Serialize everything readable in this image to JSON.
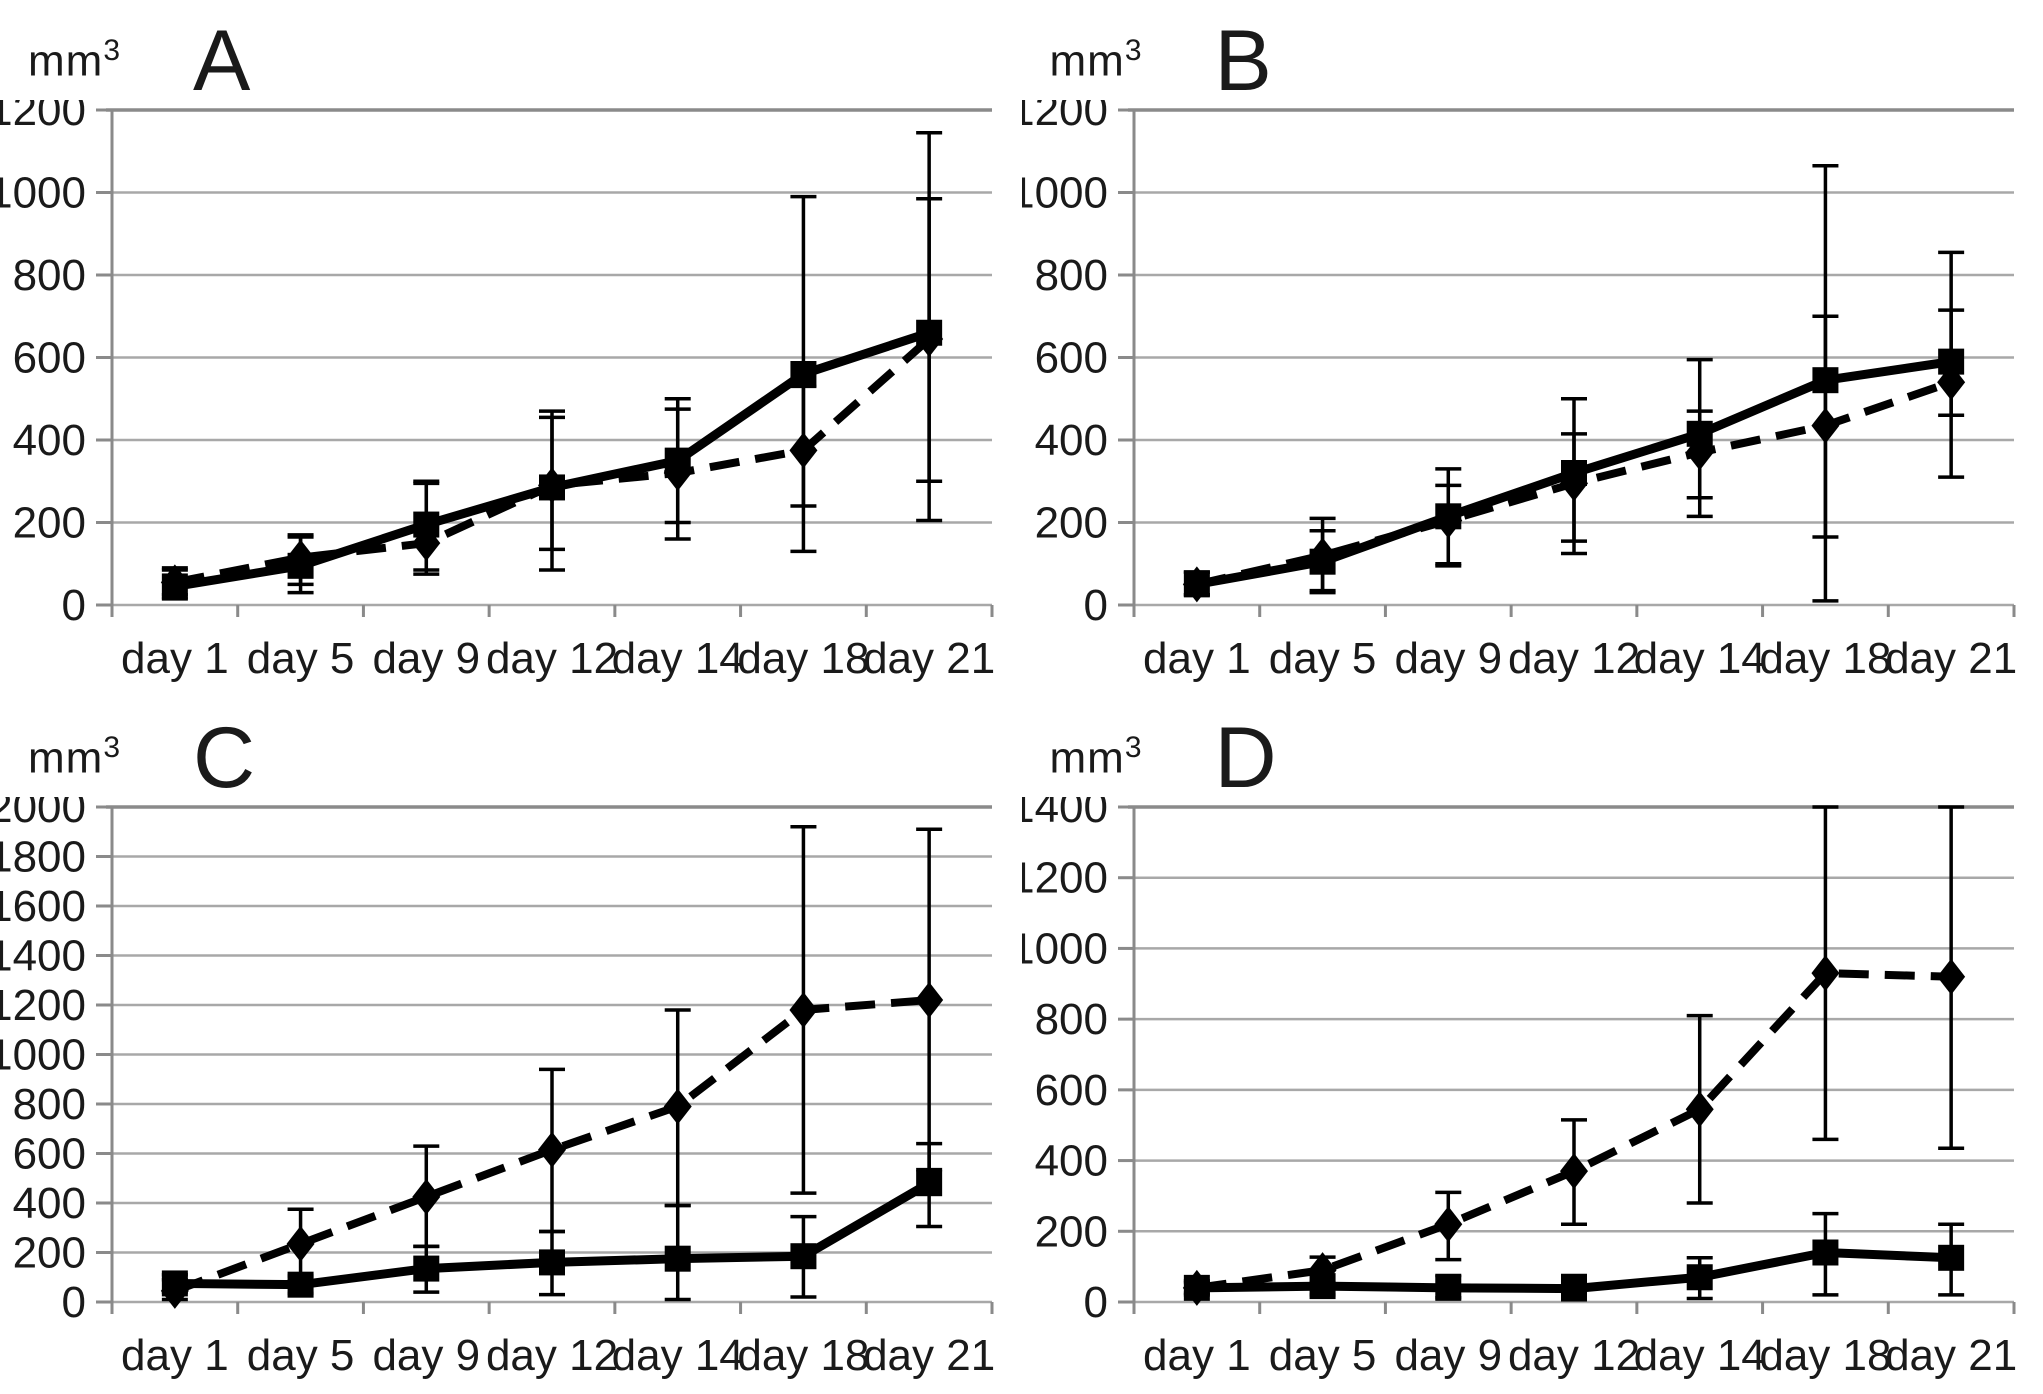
{
  "figure_title": "",
  "colors": {
    "series": "#000000",
    "gridline": "#a8a8a8",
    "axis": "#8a8a8a",
    "text": "#1a1a1a",
    "background": "#ffffff"
  },
  "chart_data": [
    {
      "panel": "A",
      "type": "line",
      "unit_base": "mm",
      "unit_exp": "3",
      "ylabel": "mm³",
      "xlabel": "",
      "grid": true,
      "legend": "none",
      "categories": [
        "day 1",
        "day 5",
        "day 9",
        "day 12",
        "day 14",
        "day 18",
        "day 21"
      ],
      "ylim": [
        0,
        1200
      ],
      "ytick_step": 200,
      "series": [
        {
          "name": "dashed-diamond-series",
          "marker": "diamond",
          "line_style": "dashed",
          "values": [
            55,
            115,
            150,
            290,
            320,
            375,
            645
          ],
          "err_low": [
            25,
            50,
            75,
            85,
            200,
            130,
            205
          ],
          "err_high": [
            90,
            165,
            300,
            470,
            475,
            530,
            985
          ]
        },
        {
          "name": "solid-square-series",
          "marker": "square",
          "line_style": "solid",
          "values": [
            45,
            95,
            195,
            285,
            350,
            560,
            660
          ],
          "err_low": [
            15,
            30,
            85,
            135,
            160,
            240,
            300
          ],
          "err_high": [
            85,
            170,
            295,
            455,
            500,
            990,
            1145
          ]
        }
      ]
    },
    {
      "panel": "B",
      "type": "line",
      "unit_base": "mm",
      "unit_exp": "3",
      "ylabel": "mm³",
      "xlabel": "",
      "grid": true,
      "legend": "none",
      "categories": [
        "day 1",
        "day 5",
        "day 9",
        "day 12",
        "day 14",
        "day 18",
        "day 21"
      ],
      "ylim": [
        0,
        1200
      ],
      "ytick_step": 200,
      "series": [
        {
          "name": "dashed-diamond-series",
          "marker": "diamond",
          "line_style": "dashed",
          "values": [
            50,
            120,
            205,
            295,
            370,
            435,
            540
          ],
          "err_low": [
            25,
            35,
            100,
            125,
            260,
            10,
            310
          ],
          "err_high": [
            80,
            180,
            290,
            415,
            470,
            700,
            715
          ]
        },
        {
          "name": "solid-square-series",
          "marker": "square",
          "line_style": "solid",
          "values": [
            50,
            105,
            215,
            320,
            415,
            545,
            590
          ],
          "err_low": [
            25,
            30,
            95,
            155,
            215,
            165,
            460
          ],
          "err_high": [
            80,
            210,
            330,
            500,
            595,
            1065,
            855
          ]
        }
      ]
    },
    {
      "panel": "C",
      "type": "line",
      "unit_base": "mm",
      "unit_exp": "3",
      "ylabel": "mm³",
      "xlabel": "",
      "grid": true,
      "legend": "none",
      "categories": [
        "day 1",
        "day 5",
        "day 9",
        "day 12",
        "day 14",
        "day 18",
        "day 21"
      ],
      "ylim": [
        0,
        2000
      ],
      "ytick_step": 200,
      "series": [
        {
          "name": "dashed-diamond-series",
          "marker": "diamond",
          "line_style": "dashed",
          "values": [
            45,
            235,
            425,
            615,
            790,
            1180,
            1220
          ],
          "err_low": [
            10,
            85,
            225,
            285,
            390,
            440,
            535
          ],
          "err_high": [
            90,
            375,
            630,
            940,
            1180,
            1920,
            1910
          ]
        },
        {
          "name": "solid-square-series",
          "marker": "square",
          "line_style": "solid",
          "values": [
            75,
            70,
            135,
            160,
            175,
            185,
            480
          ],
          "err_low": [
            40,
            35,
            40,
            30,
            10,
            20,
            305
          ],
          "err_high": [
            110,
            105,
            225,
            285,
            390,
            345,
            640
          ]
        }
      ]
    },
    {
      "panel": "D",
      "type": "line",
      "unit_base": "mm",
      "unit_exp": "3",
      "ylabel": "mm³",
      "xlabel": "",
      "grid": true,
      "legend": "none",
      "categories": [
        "day 1",
        "day 5",
        "day 9",
        "day 12",
        "day 14",
        "day 18",
        "day 21"
      ],
      "ylim": [
        0,
        1400
      ],
      "ytick_step": 200,
      "series": [
        {
          "name": "dashed-diamond-series",
          "marker": "diamond",
          "line_style": "dashed",
          "values": [
            40,
            90,
            220,
            370,
            545,
            930,
            920
          ],
          "err_low": [
            20,
            55,
            120,
            220,
            280,
            460,
            435
          ],
          "err_high": [
            60,
            127,
            310,
            515,
            810,
            1400,
            1400
          ]
        },
        {
          "name": "solid-square-series",
          "marker": "square",
          "line_style": "solid",
          "values": [
            40,
            45,
            40,
            38,
            70,
            140,
            125
          ],
          "err_low": [
            25,
            20,
            12,
            12,
            10,
            20,
            20
          ],
          "err_high": [
            55,
            90,
            75,
            75,
            125,
            250,
            220
          ]
        }
      ]
    }
  ]
}
